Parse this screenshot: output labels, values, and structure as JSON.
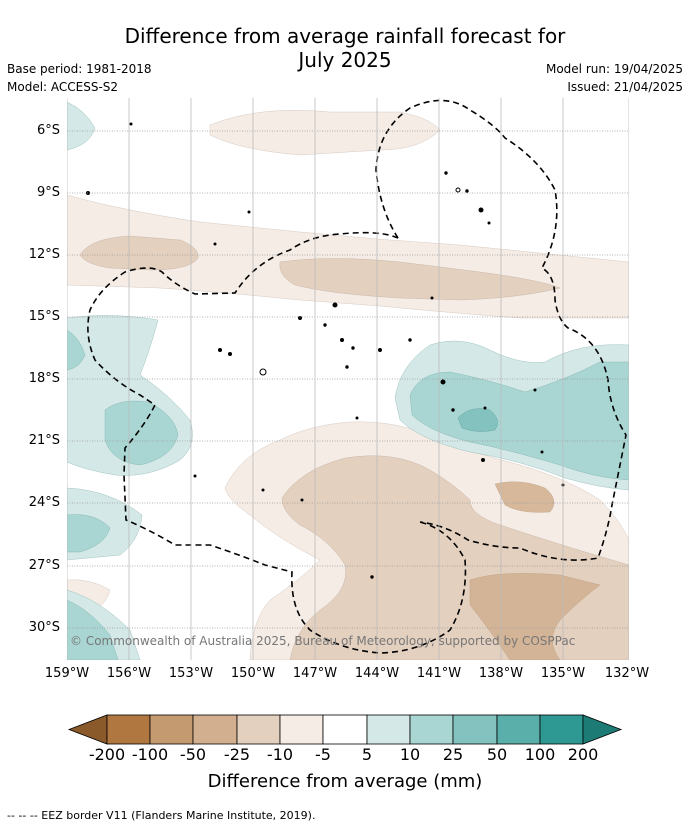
{
  "title_line1": "Difference from average rainfall forecast for",
  "title_line2": "July 2025",
  "meta_left": {
    "base_period": "Base period: 1981-2018",
    "model": "Model: ACCESS-S2"
  },
  "meta_right": {
    "model_run": "Model run: 19/04/2025",
    "issued": "Issued: 21/04/2025"
  },
  "latitudes": [
    "6°S",
    "9°S",
    "12°S",
    "15°S",
    "18°S",
    "21°S",
    "24°S",
    "27°S",
    "30°S"
  ],
  "longitudes": [
    "159°W",
    "156°W",
    "153°W",
    "150°W",
    "147°W",
    "144°W",
    "141°W",
    "138°W",
    "135°W",
    "132°W"
  ],
  "copyright": "© Commonwealth of Australia 2025, Bureau of Meteorology, supported by COSPPac",
  "colorbar": {
    "labels": [
      "-200",
      "-100",
      "-50",
      "-25",
      "-10",
      "-5",
      "5",
      "10",
      "25",
      "50",
      "100",
      "200"
    ],
    "colors": [
      "#8b5a2b",
      "#b07840",
      "#c49a70",
      "#d2b08f",
      "#e4d0bf",
      "#f5ece6",
      "#ffffff",
      "#d4e9e7",
      "#a9d6d3",
      "#83c2bf",
      "#5aafab",
      "#2e9892",
      "#1d7b76"
    ],
    "title": "Difference from average (mm)"
  },
  "footnote": "--  --  -- EEZ border V11 (Flanders Marine Institute, 2019).",
  "map_colors": {
    "dry_light": "#f5ece6",
    "dry_mid": "#e4d0bf",
    "dry_dark": "#d2b08f",
    "wet_light": "#d4e9e7",
    "wet_mid": "#a9d6d3",
    "wet_dark": "#83c2bf"
  }
}
